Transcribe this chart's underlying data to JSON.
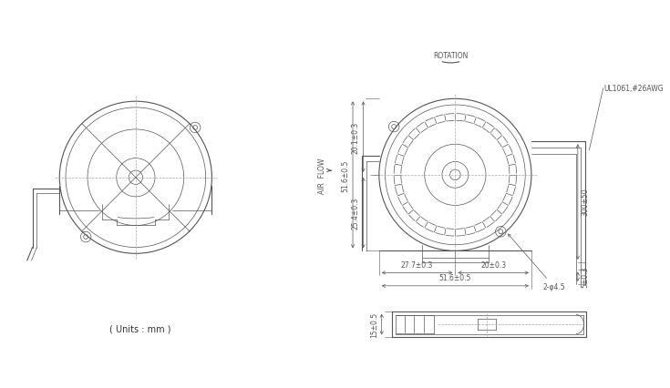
{
  "bg_color": "#ffffff",
  "line_color": "#555555",
  "dim_color": "#555555",
  "thin_lw": 0.5,
  "med_lw": 0.8,
  "thick_lw": 1.2,
  "font_size": 6,
  "title_font_size": 7,
  "annotations": {
    "rotation_label": "ROTATION",
    "ul_label": "UL1061,#26AWG",
    "airflow_label": "AIR  FLOW",
    "units_label": "( Units : mm )",
    "dim_51_6_05": "51.6±0.5",
    "dim_20_1_03": "20.1±0.3",
    "dim_25_4_03": "25.4±0.3",
    "dim_27_7_03": "27.7±0.3",
    "dim_20_03": "20±0.3",
    "dim_51_6_05b": "51.6±0.5",
    "dim_2_dia45": "2-φ4.5",
    "dim_300_50": "300±50",
    "dim_5_03": "5±0.3",
    "dim_15_05": "15±0.5"
  }
}
